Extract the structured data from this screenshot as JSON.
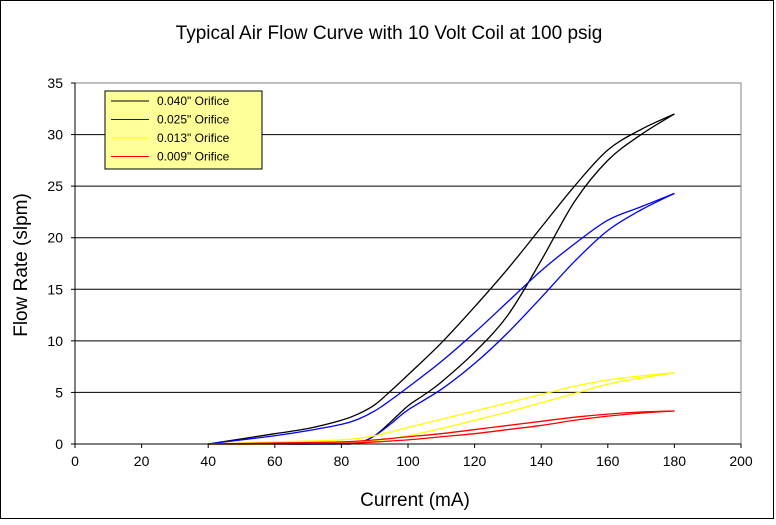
{
  "chart_data": {
    "type": "line",
    "title": "Typical Air Flow Curve with 10 Volt Coil at 100 psig",
    "xlabel": "Current (mA)",
    "ylabel": "Flow Rate (slpm)",
    "xlim": [
      0,
      200
    ],
    "ylim": [
      0,
      35
    ],
    "xticks": [
      0,
      20,
      40,
      60,
      80,
      100,
      120,
      140,
      160,
      180,
      200
    ],
    "yticks": [
      0,
      5,
      10,
      15,
      20,
      25,
      30,
      35
    ],
    "grid": "horizontal",
    "legend_position": "top-left",
    "series": [
      {
        "name": "0.040\" Orifice",
        "color": "#000000",
        "branches": [
          {
            "x": [
              40,
              50,
              60,
              70,
              80,
              85,
              90,
              95,
              100,
              110,
              120,
              130,
              140,
              150,
              160,
              170,
              180
            ],
            "y": [
              0,
              0.5,
              1.0,
              1.5,
              2.3,
              2.9,
              3.8,
              5.2,
              6.7,
              9.8,
              13.3,
              17.0,
              21.0,
              25.0,
              28.5,
              30.5,
              32.0
            ]
          },
          {
            "x": [
              40,
              60,
              80,
              85,
              90,
              95,
              100,
              105,
              110,
              120,
              130,
              140,
              150,
              160,
              170,
              180
            ],
            "y": [
              0,
              0,
              0,
              0.1,
              0.8,
              2.2,
              3.7,
              4.8,
              6.0,
              8.9,
              12.5,
              17.8,
              23.5,
              27.5,
              30.0,
              32.0
            ]
          }
        ]
      },
      {
        "name": "0.025\" Orifice",
        "color": "#0000ff",
        "branches": [
          {
            "x": [
              40,
              50,
              60,
              70,
              80,
              85,
              90,
              95,
              100,
              110,
              120,
              130,
              140,
              150,
              160,
              170,
              180
            ],
            "y": [
              0,
              0.4,
              0.8,
              1.3,
              1.9,
              2.4,
              3.2,
              4.3,
              5.5,
              8.0,
              10.8,
              13.8,
              16.8,
              19.4,
              21.7,
              23.0,
              24.3
            ]
          },
          {
            "x": [
              40,
              60,
              80,
              85,
              90,
              95,
              100,
              110,
              120,
              130,
              140,
              150,
              160,
              170,
              180
            ],
            "y": [
              0,
              0,
              0,
              0.1,
              0.8,
              2.0,
              3.3,
              5.3,
              7.8,
              10.8,
              14.2,
              17.7,
              20.7,
              22.7,
              24.3
            ]
          }
        ]
      },
      {
        "name": "0.013\" Orifice",
        "color": "#ffff00",
        "branches": [
          {
            "x": [
              40,
              60,
              80,
              90,
              100,
              110,
              120,
              130,
              140,
              150,
              160,
              170,
              180
            ],
            "y": [
              0,
              0.2,
              0.4,
              0.8,
              1.6,
              2.4,
              3.2,
              4.0,
              4.8,
              5.6,
              6.2,
              6.6,
              6.9
            ]
          },
          {
            "x": [
              40,
              60,
              80,
              90,
              100,
              110,
              120,
              130,
              140,
              150,
              160,
              170,
              180
            ],
            "y": [
              0,
              0,
              0.1,
              0.3,
              0.8,
              1.5,
              2.3,
              3.1,
              4.0,
              4.9,
              5.8,
              6.4,
              6.9
            ]
          }
        ]
      },
      {
        "name": "0.009\" Orifice",
        "color": "#ff0000",
        "branches": [
          {
            "x": [
              40,
              60,
              80,
              90,
              100,
              110,
              120,
              130,
              140,
              150,
              160,
              170,
              180
            ],
            "y": [
              0,
              0.1,
              0.2,
              0.4,
              0.7,
              1.0,
              1.4,
              1.8,
              2.2,
              2.6,
              2.9,
              3.1,
              3.2
            ]
          },
          {
            "x": [
              40,
              60,
              80,
              90,
              100,
              110,
              120,
              130,
              140,
              150,
              160,
              170,
              180
            ],
            "y": [
              0,
              0,
              0.05,
              0.2,
              0.4,
              0.7,
              1.0,
              1.4,
              1.8,
              2.3,
              2.7,
              3.0,
              3.2
            ]
          }
        ]
      }
    ]
  }
}
